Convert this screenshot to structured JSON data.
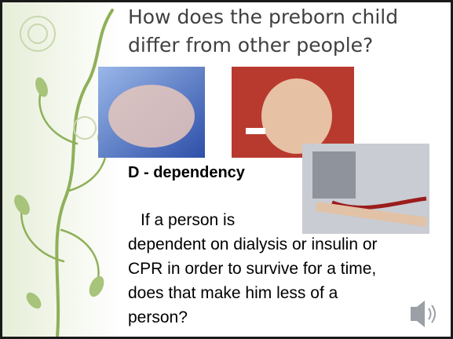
{
  "slide": {
    "title_lines": [
      "How does the preborn child",
      "differ from other people?"
    ],
    "heading": "D - dependency",
    "body_lines": [
      "If a person is",
      "dependent on dialysis or insulin or",
      "CPR in order to survive for a time,",
      "does that make him less of a",
      "person?"
    ]
  }
}
